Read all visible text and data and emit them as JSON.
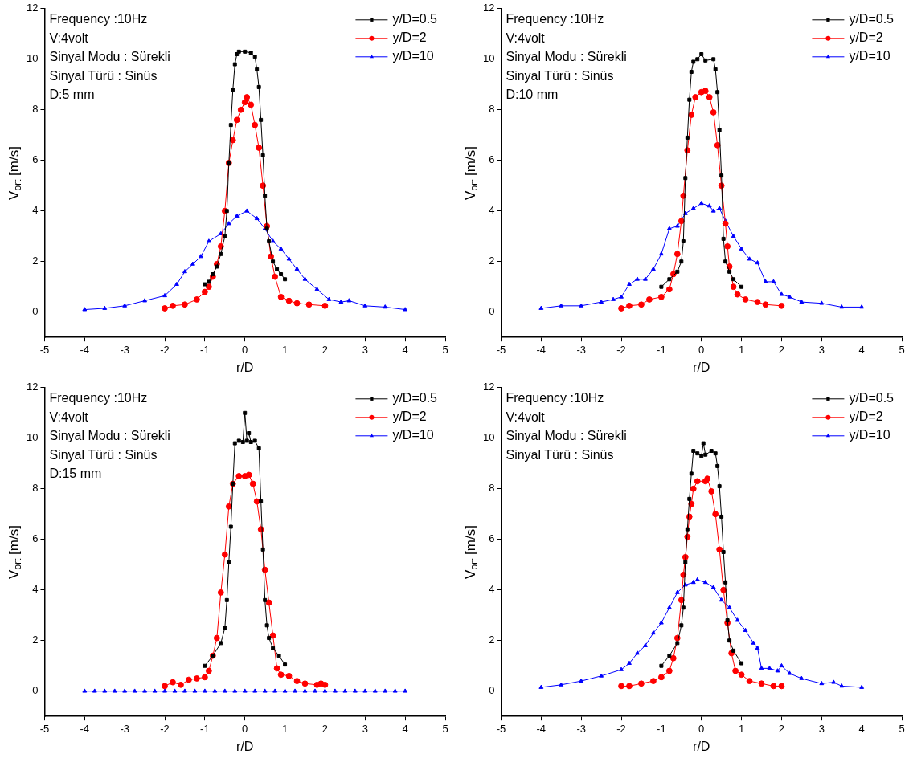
{
  "chart_data": [
    {
      "type": "line",
      "xlabel": "r/D",
      "ylabel": "V$_{ort}$ [m/s]",
      "annotations": [
        "Frequency :10Hz",
        "V:4volt",
        "Sinyal Modu : Sürekli",
        "Sinyal Türü : Sinüs",
        "D:5 mm"
      ],
      "xlim": [
        -5,
        5
      ],
      "xticks": [
        -5,
        -4,
        -3,
        -2,
        -1,
        0,
        1,
        2,
        3,
        4,
        5
      ],
      "ylim": [
        -1,
        12
      ],
      "yticks": [
        0,
        2,
        4,
        6,
        8,
        10,
        12
      ],
      "grid": false,
      "legend": "top right",
      "line_style": "solid",
      "series": [
        {
          "name": "y/D=0.5",
          "color": "#000000",
          "marker": "square",
          "x": [
            -1,
            -0.9,
            -0.8,
            -0.7,
            -0.6,
            -0.5,
            -0.45,
            -0.4,
            -0.35,
            -0.3,
            -0.25,
            -0.2,
            -0.15,
            0,
            0.15,
            0.25,
            0.3,
            0.35,
            0.4,
            0.45,
            0.5,
            0.55,
            0.6,
            0.7,
            0.8,
            0.9,
            1
          ],
          "values": [
            1.1,
            1.2,
            1.5,
            1.8,
            2.3,
            3,
            4,
            5.9,
            7.4,
            8.8,
            9.8,
            10.2,
            10.3,
            10.3,
            10.25,
            10.1,
            9.6,
            8.9,
            7.6,
            6.2,
            4.6,
            3.3,
            2.8,
            2,
            1.7,
            1.5,
            1.3
          ]
        },
        {
          "name": "y/D=2",
          "color": "#ff0000",
          "marker": "circle",
          "x": [
            -2,
            -1.8,
            -1.5,
            -1.2,
            -1,
            -0.9,
            -0.8,
            -0.7,
            -0.6,
            -0.5,
            -0.4,
            -0.3,
            -0.2,
            -0.1,
            0,
            0.05,
            0.15,
            0.25,
            0.35,
            0.45,
            0.55,
            0.65,
            0.75,
            0.9,
            1.1,
            1.3,
            1.6,
            2
          ],
          "values": [
            0.15,
            0.25,
            0.3,
            0.5,
            0.8,
            1,
            1.4,
            1.9,
            2.6,
            4,
            5.9,
            6.8,
            7.6,
            8,
            8.3,
            8.5,
            8.2,
            7.4,
            6.5,
            5,
            3.4,
            2.2,
            1.4,
            0.6,
            0.45,
            0.35,
            0.3,
            0.25
          ]
        },
        {
          "name": "y/D=10",
          "color": "#0000ff",
          "marker": "triangle",
          "x": [
            -4,
            -3.5,
            -3,
            -2.5,
            -2,
            -1.7,
            -1.5,
            -1.3,
            -1.1,
            -0.9,
            -0.6,
            -0.4,
            -0.2,
            0.05,
            0.3,
            0.5,
            0.7,
            0.9,
            1.1,
            1.3,
            1.5,
            1.8,
            2.1,
            2.4,
            2.6,
            3,
            3.5,
            4
          ],
          "values": [
            0.1,
            0.15,
            0.25,
            0.45,
            0.65,
            1.1,
            1.6,
            1.9,
            2.2,
            2.8,
            3.1,
            3.5,
            3.8,
            4,
            3.7,
            3.3,
            2.8,
            2.5,
            2.1,
            1.7,
            1.3,
            0.9,
            0.5,
            0.4,
            0.45,
            0.25,
            0.2,
            0.1
          ]
        }
      ]
    },
    {
      "type": "line",
      "xlabel": "r/D",
      "ylabel": "V$_{ort}$ [m/s]",
      "annotations": [
        "Frequency :10Hz",
        "V:4volt",
        "Sinyal Modu : Sürekli",
        "Sinyal Türü : Sinüs",
        "D:10 mm"
      ],
      "xlim": [
        -5,
        5
      ],
      "xticks": [
        -5,
        -4,
        -3,
        -2,
        -1,
        0,
        1,
        2,
        3,
        4,
        5
      ],
      "ylim": [
        -1,
        12
      ],
      "yticks": [
        0,
        2,
        4,
        6,
        8,
        10,
        12
      ],
      "grid": false,
      "legend": "top right",
      "line_style": "solid",
      "series": [
        {
          "name": "y/D=0.5",
          "color": "#000000",
          "marker": "square",
          "x": [
            -1,
            -0.8,
            -0.6,
            -0.5,
            -0.45,
            -0.4,
            -0.35,
            -0.3,
            -0.25,
            -0.2,
            -0.1,
            0,
            0.1,
            0.3,
            0.35,
            0.4,
            0.45,
            0.5,
            0.55,
            0.6,
            0.7,
            0.8,
            1
          ],
          "values": [
            1,
            1.3,
            1.6,
            2,
            2.8,
            5.3,
            6.9,
            8.4,
            9.5,
            9.9,
            10,
            10.2,
            9.95,
            10,
            9.6,
            8.7,
            7.2,
            5.4,
            2.9,
            2,
            1.6,
            1.3,
            1
          ]
        },
        {
          "name": "y/D=2",
          "color": "#ff0000",
          "marker": "circle",
          "x": [
            -2,
            -1.8,
            -1.5,
            -1.3,
            -1,
            -0.8,
            -0.7,
            -0.6,
            -0.5,
            -0.45,
            -0.35,
            -0.25,
            -0.15,
            0,
            0.1,
            0.2,
            0.3,
            0.4,
            0.5,
            0.6,
            0.65,
            0.7,
            0.8,
            0.9,
            1.1,
            1.4,
            1.6,
            2
          ],
          "values": [
            0.15,
            0.25,
            0.3,
            0.5,
            0.6,
            0.9,
            1.5,
            2.3,
            3.6,
            4.6,
            6.4,
            7.8,
            8.5,
            8.7,
            8.75,
            8.5,
            7.9,
            6.6,
            5,
            3.5,
            2.6,
            1.8,
            1,
            0.7,
            0.5,
            0.4,
            0.3,
            0.25
          ]
        },
        {
          "name": "y/D=10",
          "color": "#0000ff",
          "marker": "triangle",
          "x": [
            -4,
            -3.5,
            -3,
            -2.5,
            -2.2,
            -2,
            -1.8,
            -1.6,
            -1.4,
            -1.2,
            -1,
            -0.8,
            -0.6,
            -0.4,
            -0.2,
            0,
            0.2,
            0.3,
            0.45,
            0.6,
            0.8,
            1,
            1.2,
            1.4,
            1.6,
            1.8,
            2,
            2.2,
            2.5,
            3,
            3.5,
            4
          ],
          "values": [
            0.15,
            0.25,
            0.25,
            0.4,
            0.5,
            0.6,
            1.1,
            1.3,
            1.3,
            1.7,
            2.3,
            3.3,
            3.4,
            3.9,
            4.1,
            4.3,
            4.2,
            4,
            4.1,
            3.6,
            3,
            2.5,
            2.1,
            1.95,
            1.2,
            1.2,
            0.7,
            0.6,
            0.4,
            0.35,
            0.2,
            0.2
          ]
        }
      ]
    },
    {
      "type": "line",
      "xlabel": "r/D",
      "ylabel": "V$_{ort}$ [m/s]",
      "annotations": [
        "Frequency :10Hz",
        "V:4volt",
        "Sinyal Modu : Sürekli",
        "Sinyal Türü : Sinüs",
        "D:15 mm"
      ],
      "xlim": [
        -5,
        5
      ],
      "xticks": [
        -5,
        -4,
        -3,
        -2,
        -1,
        0,
        1,
        2,
        3,
        4,
        5
      ],
      "ylim": [
        -1,
        12
      ],
      "yticks": [
        0,
        2,
        4,
        6,
        8,
        10,
        12
      ],
      "grid": false,
      "legend": "top right",
      "line_style": "solid",
      "series": [
        {
          "name": "y/D=0.5",
          "color": "#000000",
          "marker": "square",
          "x": [
            -1,
            -0.8,
            -0.6,
            -0.5,
            -0.45,
            -0.4,
            -0.35,
            -0.3,
            -0.25,
            -0.15,
            -0.05,
            0,
            0.05,
            0.1,
            0.15,
            0.25,
            0.35,
            0.4,
            0.45,
            0.5,
            0.55,
            0.6,
            0.7,
            0.85,
            1
          ],
          "values": [
            1,
            1.4,
            1.9,
            2.5,
            3.6,
            5.1,
            6.5,
            8.2,
            9.8,
            9.9,
            9.85,
            11,
            9.9,
            10.2,
            9.85,
            9.9,
            9.6,
            7.5,
            5.6,
            3.6,
            2.6,
            2.1,
            1.7,
            1.4,
            1.05
          ]
        },
        {
          "name": "y/D=2",
          "color": "#ff0000",
          "marker": "circle",
          "x": [
            -2,
            -1.8,
            -1.6,
            -1.4,
            -1.2,
            -1,
            -0.9,
            -0.8,
            -0.7,
            -0.6,
            -0.5,
            -0.4,
            -0.3,
            -0.15,
            0,
            0.1,
            0.2,
            0.3,
            0.4,
            0.5,
            0.6,
            0.7,
            0.8,
            0.9,
            1.1,
            1.3,
            1.5,
            1.8,
            1.9,
            2
          ],
          "values": [
            0.2,
            0.35,
            0.25,
            0.45,
            0.5,
            0.55,
            0.8,
            1.4,
            2.1,
            3.9,
            5.4,
            7.3,
            8.2,
            8.5,
            8.5,
            8.55,
            8.2,
            7.5,
            6.4,
            4.8,
            3.5,
            2.2,
            0.9,
            0.65,
            0.6,
            0.4,
            0.3,
            0.25,
            0.3,
            0.25
          ]
        },
        {
          "name": "y/D=10",
          "color": "#0000ff",
          "marker": "triangle",
          "x": [
            -4,
            -3.75,
            -3.5,
            -3.25,
            -3,
            -2.75,
            -2.5,
            -2.25,
            -2,
            -1.75,
            -1.5,
            -1.25,
            -1,
            -0.75,
            -0.5,
            -0.25,
            0,
            0.25,
            0.5,
            0.75,
            1,
            1.25,
            1.5,
            1.75,
            2,
            2.25,
            2.5,
            2.75,
            3,
            3.25,
            3.5,
            3.75,
            4
          ],
          "values": [
            0,
            0,
            0,
            0,
            0,
            0,
            0,
            0,
            0,
            0,
            0,
            0,
            0,
            0,
            0,
            0,
            0,
            0,
            0,
            0,
            0,
            0,
            0,
            0,
            0,
            0,
            0,
            0,
            0,
            0,
            0,
            0,
            0
          ]
        }
      ]
    },
    {
      "type": "line",
      "xlabel": "r/D",
      "ylabel": "V$_{ort}$ [m/s]",
      "annotations": [
        "Frequency :10Hz",
        "V:4volt",
        "Sinyal Modu : Sürekli",
        "Sinyal Türü : Sinüs"
      ],
      "xlim": [
        -5,
        5
      ],
      "xticks": [
        -5,
        -4,
        -3,
        -2,
        -1,
        0,
        1,
        2,
        3,
        4,
        5
      ],
      "ylim": [
        -1,
        12
      ],
      "yticks": [
        0,
        2,
        4,
        6,
        8,
        10,
        12
      ],
      "grid": false,
      "legend": "top right",
      "line_style": "solid",
      "series": [
        {
          "name": "y/D=0.5",
          "color": "#000000",
          "marker": "square",
          "x": [
            -1,
            -0.8,
            -0.6,
            -0.5,
            -0.45,
            -0.4,
            -0.35,
            -0.3,
            -0.25,
            -0.2,
            -0.1,
            0,
            0.05,
            0.1,
            0.25,
            0.35,
            0.4,
            0.45,
            0.5,
            0.55,
            0.6,
            0.65,
            0.7,
            0.8,
            1
          ],
          "values": [
            1,
            1.4,
            1.9,
            2.6,
            3.3,
            5.1,
            6.4,
            7.6,
            8.6,
            9.5,
            9.4,
            9.3,
            9.8,
            9.35,
            9.5,
            9.4,
            8.9,
            8.1,
            6.9,
            5.5,
            4.3,
            2.8,
            2,
            1.6,
            1.1
          ]
        },
        {
          "name": "y/D=2",
          "color": "#ff0000",
          "marker": "circle",
          "x": [
            -2,
            -1.8,
            -1.5,
            -1.2,
            -1,
            -0.8,
            -0.7,
            -0.6,
            -0.5,
            -0.45,
            -0.4,
            -0.35,
            -0.3,
            -0.25,
            -0.2,
            -0.1,
            0.1,
            0.15,
            0.25,
            0.35,
            0.45,
            0.55,
            0.65,
            0.75,
            0.85,
            1,
            1.2,
            1.5,
            1.8,
            2
          ],
          "values": [
            0.2,
            0.2,
            0.3,
            0.4,
            0.55,
            0.8,
            1.3,
            2.1,
            3.6,
            4.6,
            5.3,
            6.1,
            6.9,
            7.4,
            8,
            8.3,
            8.3,
            8.4,
            7.9,
            7,
            5.6,
            4,
            2.7,
            1.5,
            0.8,
            0.65,
            0.4,
            0.3,
            0.2,
            0.2
          ]
        },
        {
          "name": "y/D=10",
          "color": "#0000ff",
          "marker": "triangle",
          "x": [
            -4,
            -3.5,
            -3,
            -2.5,
            -2,
            -1.8,
            -1.6,
            -1.4,
            -1.2,
            -1,
            -0.8,
            -0.6,
            -0.4,
            -0.2,
            -0.1,
            0.1,
            0.3,
            0.5,
            0.7,
            0.9,
            1.1,
            1.3,
            1.4,
            1.5,
            1.7,
            1.9,
            2,
            2.2,
            2.5,
            3,
            3.3,
            3.5,
            4
          ],
          "values": [
            0.15,
            0.25,
            0.4,
            0.6,
            0.85,
            1.1,
            1.5,
            1.8,
            2.3,
            2.7,
            3.3,
            3.9,
            4.2,
            4.3,
            4.4,
            4.3,
            4.1,
            3.6,
            3.3,
            2.8,
            2.4,
            1.9,
            1.7,
            0.9,
            0.9,
            0.8,
            1,
            0.7,
            0.5,
            0.3,
            0.35,
            0.2,
            0.15
          ]
        }
      ]
    }
  ]
}
